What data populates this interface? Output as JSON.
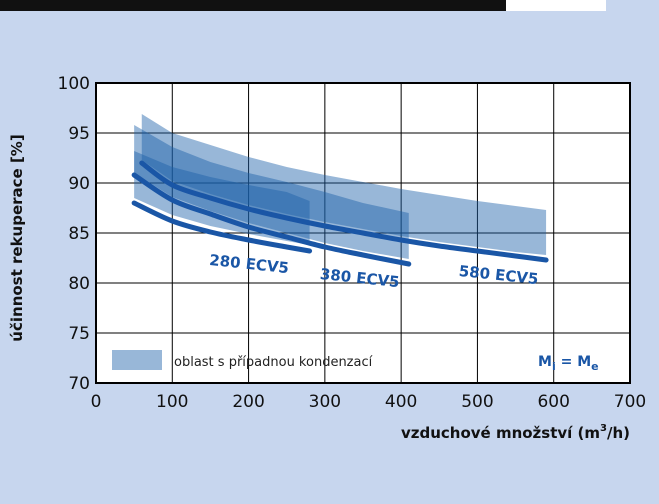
{
  "colors": {
    "background": "#c7d6ee",
    "plot_bg": "#ffffff",
    "band": "#1a5fa8",
    "band_opacity": 0.45,
    "line": "#1a56a6",
    "grid": "#000000"
  },
  "chart_data": {
    "type": "line",
    "title": "",
    "xlabel": "vzduchové množství (m³/h)",
    "ylabel": "účinnost rekuperace [%]",
    "xlim": [
      0,
      700
    ],
    "ylim": [
      70,
      100
    ],
    "x_ticks": [
      0,
      100,
      200,
      300,
      400,
      500,
      600,
      700
    ],
    "y_ticks": [
      70,
      75,
      80,
      85,
      90,
      95,
      100
    ],
    "x_tick_labels": [
      "0",
      "100",
      "200",
      "300",
      "400",
      "500",
      "600",
      "700"
    ],
    "y_tick_labels": [
      "70",
      "75",
      "80",
      "85",
      "90",
      "95",
      "100"
    ],
    "grid": true,
    "series": [
      {
        "name": "280 ECV5",
        "x": [
          50,
          100,
          150,
          200,
          250,
          280
        ],
        "y": [
          88.0,
          86.2,
          85.1,
          84.3,
          83.6,
          83.2
        ]
      },
      {
        "name": "380 ECV5",
        "x": [
          50,
          100,
          150,
          200,
          250,
          300,
          350,
          410
        ],
        "y": [
          90.8,
          88.3,
          86.9,
          85.6,
          84.6,
          83.6,
          82.8,
          81.9
        ]
      },
      {
        "name": "580 ECV5",
        "x": [
          60,
          100,
          150,
          200,
          250,
          300,
          350,
          400,
          450,
          500,
          550,
          590
        ],
        "y": [
          92.0,
          89.8,
          88.5,
          87.4,
          86.5,
          85.7,
          85.0,
          84.3,
          83.7,
          83.2,
          82.7,
          82.3
        ]
      }
    ],
    "bands": [
      {
        "x": [
          50,
          100,
          150,
          200,
          250,
          280
        ],
        "upper": [
          93.2,
          91.6,
          90.6,
          89.8,
          89.1,
          88.2
        ],
        "lower": [
          88.5,
          86.8,
          85.7,
          84.9,
          84.2,
          83.8
        ]
      },
      {
        "x": [
          50,
          100,
          150,
          200,
          250,
          300,
          350,
          410
        ],
        "upper": [
          95.8,
          93.6,
          92.1,
          91.0,
          90.1,
          89.1,
          88.0,
          87.0
        ],
        "lower": [
          91.0,
          88.6,
          87.2,
          86.0,
          85.0,
          84.0,
          83.2,
          82.4
        ]
      },
      {
        "x": [
          60,
          100,
          150,
          200,
          250,
          300,
          350,
          400,
          450,
          500,
          550,
          590
        ],
        "upper": [
          96.9,
          95.0,
          93.8,
          92.6,
          91.6,
          90.8,
          90.1,
          89.4,
          88.8,
          88.2,
          87.7,
          87.3
        ],
        "lower": [
          92.3,
          90.2,
          88.9,
          87.8,
          86.9,
          86.1,
          85.4,
          84.7,
          84.1,
          83.6,
          83.1,
          82.8
        ]
      }
    ],
    "series_label_anchors": [
      {
        "name": "280 ECV5",
        "x": 200,
        "y": 81.4
      },
      {
        "name": "380 ECV5",
        "x": 345,
        "y": 80.0
      },
      {
        "name": "580 ECV5",
        "x": 527,
        "y": 80.3
      }
    ]
  },
  "legend": {
    "text": "oblast s případnou kondenzací",
    "equation_main_1": "M",
    "equation_sub_1": "i",
    "equation_mid": " = ",
    "equation_main_2": "M",
    "equation_sub_2": "e"
  },
  "axis": {
    "ylabel": "účinnost rekuperace [%]",
    "xlabel_main": "vzduchové množství (m",
    "xlabel_sup": "3",
    "xlabel_tail": "/h)"
  }
}
